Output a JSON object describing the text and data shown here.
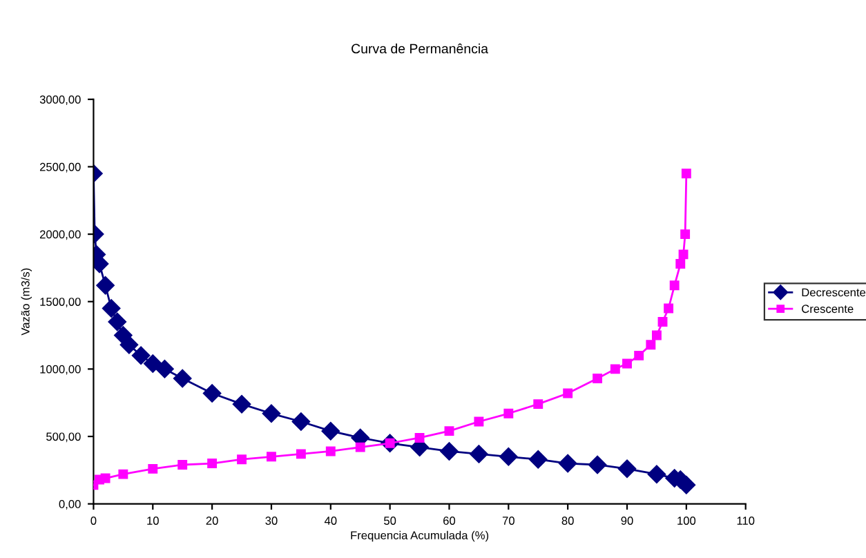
{
  "chart_data": {
    "type": "line",
    "title": "Curva de Permanência",
    "xlabel": "Frequencia Acumulada (%)",
    "ylabel": "Vazão (m3/s)",
    "xlim": [
      0,
      110
    ],
    "xticks": [
      0,
      10,
      20,
      30,
      40,
      50,
      60,
      70,
      80,
      90,
      100,
      110
    ],
    "ylim": [
      0,
      3000
    ],
    "yticks": [
      {
        "value": 0,
        "label": "0,00"
      },
      {
        "value": 500,
        "label": "500,00"
      },
      {
        "value": 1000,
        "label": "1000,00"
      },
      {
        "value": 1500,
        "label": "1500,00"
      },
      {
        "value": 2000,
        "label": "2000,00"
      },
      {
        "value": 2500,
        "label": "2500,00"
      },
      {
        "value": 3000,
        "label": "3000,00"
      }
    ],
    "grid": false,
    "legend": "right",
    "line_style": "solid",
    "series": [
      {
        "name": "Decrescente",
        "color": "#000080",
        "marker": "diamond",
        "x": [
          0,
          0.2,
          0.5,
          1,
          2,
          3,
          4,
          5,
          6,
          8,
          10,
          12,
          15,
          20,
          25,
          30,
          35,
          40,
          45,
          50,
          55,
          60,
          65,
          70,
          75,
          80,
          85,
          90,
          95,
          98,
          99,
          100
        ],
        "values": [
          2450,
          2000,
          1850,
          1780,
          1620,
          1450,
          1350,
          1250,
          1180,
          1100,
          1040,
          1000,
          930,
          820,
          740,
          670,
          610,
          540,
          490,
          450,
          420,
          390,
          370,
          350,
          330,
          300,
          290,
          260,
          220,
          190,
          180,
          140
        ]
      },
      {
        "name": "Crescente",
        "color": "#ff00ff",
        "marker": "square",
        "x": [
          0,
          1,
          2,
          5,
          10,
          15,
          20,
          25,
          30,
          35,
          40,
          45,
          50,
          55,
          60,
          65,
          70,
          75,
          80,
          85,
          88,
          90,
          92,
          94,
          95,
          96,
          97,
          98,
          99,
          99.5,
          99.8,
          100
        ],
        "values": [
          140,
          180,
          190,
          220,
          260,
          290,
          300,
          330,
          350,
          370,
          390,
          420,
          450,
          490,
          540,
          610,
          670,
          740,
          820,
          930,
          1000,
          1040,
          1100,
          1180,
          1250,
          1350,
          1450,
          1620,
          1780,
          1850,
          2000,
          2450
        ]
      }
    ]
  }
}
